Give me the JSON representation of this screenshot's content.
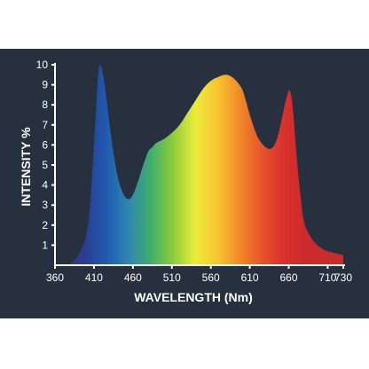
{
  "colors": {
    "background": "#27303e",
    "axis": "#ffffff",
    "spectrum_stops": [
      "#2a3d8f",
      "#1f5bb0",
      "#2f86b0",
      "#3fae6a",
      "#8ccc3a",
      "#ecec3a",
      "#f7c531",
      "#f08a28",
      "#e8542a",
      "#d8302c",
      "#cc2b2c"
    ]
  },
  "chart_data": {
    "type": "area",
    "title": "",
    "xlabel": "WAVELENGTH (Nm)",
    "ylabel": "INTENSITY %",
    "xlim": [
      360,
      730
    ],
    "ylim": [
      0,
      10
    ],
    "xticks": [
      360,
      410,
      460,
      510,
      560,
      610,
      660,
      710,
      730
    ],
    "yticks": [
      1,
      2,
      3,
      4,
      5,
      6,
      7,
      8,
      9,
      10
    ],
    "grid": false,
    "legend": "none",
    "series": [
      {
        "x": [
          380,
          390,
          400,
          405,
          410,
          415,
          418,
          422,
          426,
          430,
          435,
          440,
          445,
          450,
          455,
          460,
          465,
          470,
          475,
          480,
          485,
          490,
          500,
          510,
          520,
          530,
          540,
          550,
          560,
          570,
          580,
          590,
          600,
          605,
          610,
          615,
          620,
          625,
          630,
          635,
          640,
          645,
          650,
          655,
          660,
          663,
          666,
          670,
          675,
          680,
          690,
          700,
          710,
          720,
          730
        ],
        "y": [
          0.1,
          0.5,
          1.5,
          3.0,
          6.0,
          9.2,
          10.0,
          9.4,
          8.3,
          7.0,
          5.6,
          4.5,
          3.8,
          3.4,
          3.3,
          3.5,
          4.0,
          4.6,
          5.2,
          5.7,
          5.9,
          6.1,
          6.3,
          6.6,
          7.0,
          7.6,
          8.2,
          8.8,
          9.2,
          9.4,
          9.5,
          9.3,
          8.8,
          8.2,
          7.5,
          6.9,
          6.4,
          6.1,
          5.9,
          5.8,
          5.9,
          6.3,
          7.1,
          8.0,
          8.7,
          8.5,
          7.5,
          5.5,
          3.5,
          2.1,
          1.3,
          0.9,
          0.7,
          0.6,
          0.5
        ]
      }
    ]
  }
}
